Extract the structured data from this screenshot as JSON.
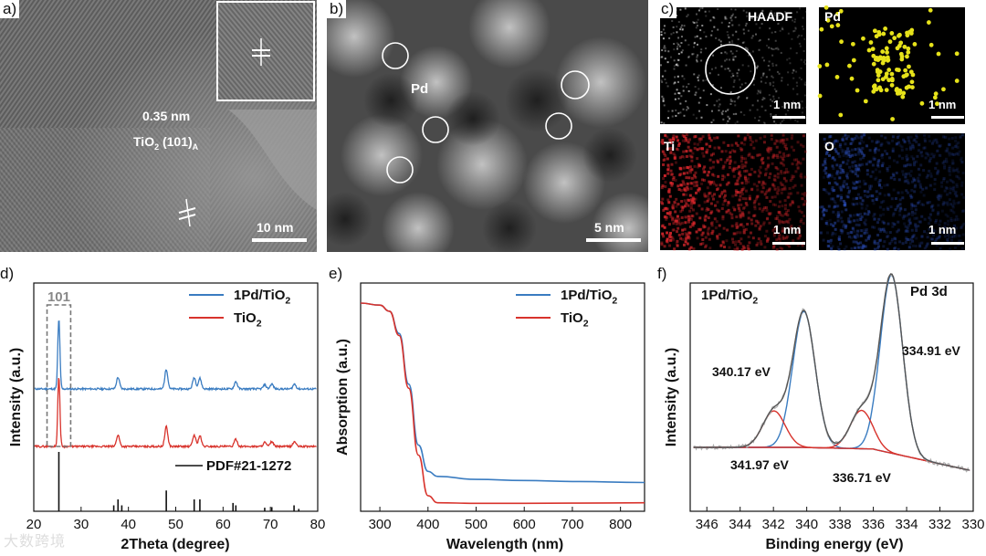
{
  "panels": {
    "a": {
      "letter": "a)",
      "spacing": "0.35 nm",
      "plane_main": "TiO",
      "plane_sub": "2",
      "plane_rest": " (101)",
      "plane_phase": "A",
      "scale": "10 nm"
    },
    "b": {
      "letter": "b)",
      "label": "Pd",
      "scale": "5 nm"
    },
    "c": {
      "letter": "c)",
      "tiles": [
        {
          "label": "HAADF",
          "scale": "1 nm",
          "color": "#ffffff"
        },
        {
          "label": "Pd",
          "scale": "1 nm",
          "color": "#e6e21a"
        },
        {
          "label": "Ti",
          "scale": "1 nm",
          "color": "#d8262b"
        },
        {
          "label": "O",
          "scale": "1 nm",
          "color": "#2f54c8"
        }
      ]
    },
    "d": {
      "letter": "d)",
      "box_label": "101",
      "ref_label": "PDF#21-1272"
    },
    "e": {
      "letter": "e)"
    },
    "f": {
      "letter": "f)",
      "sample": "1Pd/TiO",
      "sample_sub": "2",
      "region": "Pd 3d",
      "peak_labels": [
        "340.17 eV",
        "334.91 eV",
        "341.97 eV",
        "336.71 eV"
      ]
    }
  },
  "legend": {
    "series1_main": "1Pd/TiO",
    "series1_sub": "2",
    "series2_main": "TiO",
    "series2_sub": "2"
  },
  "colors": {
    "blue": "#3a7cc1",
    "red": "#d8332c",
    "grey": "#7a7a7a"
  },
  "watermark": "大数跨境",
  "chart_data": [
    {
      "type": "line",
      "panel": "d",
      "xlabel": "2Theta (degree)",
      "ylabel": "Intensity (a.u.)",
      "xlim": [
        20,
        80
      ],
      "xticks": [
        20,
        30,
        40,
        50,
        60,
        70,
        80
      ],
      "series": [
        {
          "name": "1Pd/TiO2",
          "peaks": [
            [
              25.3,
              85
            ],
            [
              37.8,
              14
            ],
            [
              48.0,
              24
            ],
            [
              53.9,
              14
            ],
            [
              55.1,
              13
            ],
            [
              62.7,
              9
            ],
            [
              68.8,
              5
            ],
            [
              70.3,
              6
            ],
            [
              75.1,
              6
            ]
          ]
        },
        {
          "name": "TiO2",
          "peaks": [
            [
              25.3,
              85
            ],
            [
              37.8,
              14
            ],
            [
              48.0,
              24
            ],
            [
              53.9,
              14
            ],
            [
              55.1,
              13
            ],
            [
              62.7,
              9
            ],
            [
              68.8,
              5
            ],
            [
              70.3,
              6
            ],
            [
              75.1,
              6
            ]
          ]
        }
      ],
      "reference": {
        "name": "PDF#21-1272",
        "lines": [
          [
            25.3,
            100
          ],
          [
            36.9,
            10
          ],
          [
            37.8,
            20
          ],
          [
            38.6,
            10
          ],
          [
            48.0,
            35
          ],
          [
            53.9,
            20
          ],
          [
            55.1,
            20
          ],
          [
            62.1,
            14
          ],
          [
            62.7,
            10
          ],
          [
            68.8,
            6
          ],
          [
            70.3,
            7
          ],
          [
            75.0,
            10
          ],
          [
            76.0,
            4
          ]
        ]
      }
    },
    {
      "type": "line",
      "panel": "e",
      "xlabel": "Wavelength (nm)",
      "ylabel": "Absorption (a.u.)",
      "xlim": [
        260,
        850
      ],
      "xticks": [
        300,
        400,
        500,
        600,
        700,
        800
      ],
      "series": [
        {
          "name": "1Pd/TiO2",
          "x": [
            260,
            300,
            320,
            340,
            360,
            380,
            400,
            420,
            500,
            600,
            700,
            850
          ],
          "y": [
            1.0,
            0.99,
            0.96,
            0.85,
            0.6,
            0.3,
            0.17,
            0.145,
            0.13,
            0.125,
            0.12,
            0.115
          ]
        },
        {
          "name": "TiO2",
          "x": [
            260,
            300,
            320,
            340,
            360,
            380,
            400,
            420,
            500,
            600,
            700,
            850
          ],
          "y": [
            1.0,
            0.99,
            0.96,
            0.84,
            0.58,
            0.25,
            0.05,
            0.015,
            0.012,
            0.012,
            0.013,
            0.015
          ]
        }
      ]
    },
    {
      "type": "line",
      "panel": "f",
      "xlabel": "Binding energy (eV)",
      "ylabel": "Intensity (a.u.)",
      "xlim": [
        347,
        330
      ],
      "xticks": [
        346,
        344,
        342,
        340,
        338,
        336,
        334,
        332,
        330
      ],
      "components": [
        {
          "name": "340.17 eV",
          "center": 340.17,
          "height": 0.71,
          "color": "blue"
        },
        {
          "name": "334.91 eV",
          "center": 334.91,
          "height": 0.93,
          "color": "blue"
        },
        {
          "name": "341.97 eV",
          "center": 341.97,
          "height": 0.19,
          "color": "red"
        },
        {
          "name": "336.71 eV",
          "center": 336.71,
          "height": 0.2,
          "color": "red"
        }
      ]
    }
  ]
}
